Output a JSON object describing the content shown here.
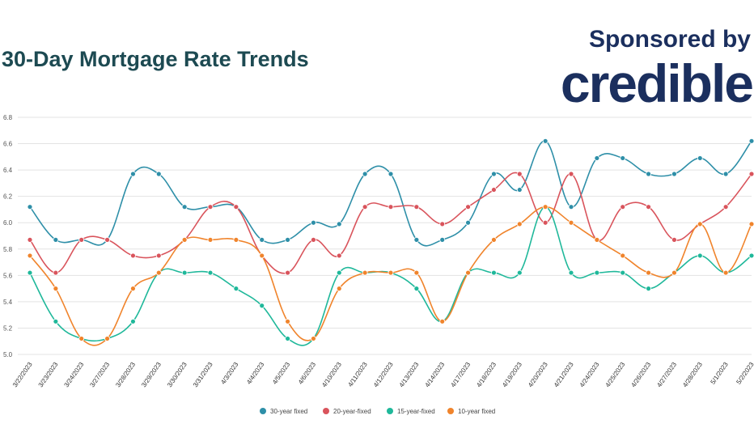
{
  "header": {
    "title": "30-Day Mortgage Rate Trends",
    "sponsor_label": "Sponsored by",
    "brand": "credible"
  },
  "colors": {
    "title": "#1d4a52",
    "brand": "#1b2f5e",
    "grid": "#e3e3e3"
  },
  "chart_data": {
    "type": "line",
    "categories": [
      "3/22/2023",
      "3/23/2023",
      "3/24/2023",
      "3/27/2023",
      "3/28/2023",
      "3/29/2023",
      "3/30/2023",
      "3/31/2023",
      "4/3/2023",
      "4/4/2023",
      "4/5/2023",
      "4/6/2023",
      "4/10/2023",
      "4/11/2023",
      "4/12/2023",
      "4/13/2023",
      "4/14/2023",
      "4/17/2023",
      "4/18/2023",
      "4/19/2023",
      "4/20/2023",
      "4/21/2023",
      "4/24/2023",
      "4/25/2023",
      "4/26/2023",
      "4/27/2023",
      "4/28/2023",
      "5/1/2023",
      "5/2/2023"
    ],
    "yticks": [
      "5.0",
      "5.2",
      "5.4",
      "5.6",
      "5.8",
      "6.0",
      "6.2",
      "6.4",
      "6.6",
      "6.8"
    ],
    "ylim": [
      5.0,
      6.8
    ],
    "grid": true,
    "legend_position": "bottom",
    "series": [
      {
        "name": "30-year fixed",
        "color": "#2e8fa8",
        "values": [
          6.12,
          5.87,
          5.87,
          5.87,
          6.37,
          6.37,
          6.12,
          6.12,
          6.12,
          5.87,
          5.87,
          6.0,
          5.99,
          6.37,
          6.37,
          5.87,
          5.87,
          6.0,
          6.37,
          6.25,
          6.62,
          6.12,
          6.49,
          6.49,
          6.37,
          6.37,
          6.49,
          6.37,
          6.62
        ]
      },
      {
        "name": "20-year-fixed",
        "color": "#d9545c",
        "values": [
          5.87,
          5.62,
          5.87,
          5.87,
          5.75,
          5.75,
          5.87,
          6.12,
          6.12,
          5.75,
          5.62,
          5.87,
          5.75,
          6.12,
          6.12,
          6.12,
          5.99,
          6.12,
          6.25,
          6.37,
          6.0,
          6.37,
          5.87,
          6.12,
          6.12,
          5.87,
          5.99,
          6.12,
          6.37
        ]
      },
      {
        "name": "15-year-fixed",
        "color": "#1fb89a",
        "values": [
          5.62,
          5.25,
          5.12,
          5.12,
          5.25,
          5.62,
          5.62,
          5.62,
          5.5,
          5.37,
          5.12,
          5.12,
          5.62,
          5.62,
          5.62,
          5.5,
          5.25,
          5.62,
          5.62,
          5.62,
          6.12,
          5.62,
          5.62,
          5.62,
          5.5,
          5.62,
          5.75,
          5.62,
          5.75
        ]
      },
      {
        "name": "10-year fixed",
        "color": "#f0842c",
        "values": [
          5.75,
          5.5,
          5.12,
          5.12,
          5.5,
          5.62,
          5.87,
          5.87,
          5.87,
          5.75,
          5.25,
          5.12,
          5.5,
          5.62,
          5.62,
          5.62,
          5.25,
          5.62,
          5.87,
          5.99,
          6.12,
          6.0,
          5.87,
          5.75,
          5.62,
          5.62,
          5.99,
          5.62,
          5.99
        ]
      }
    ]
  }
}
